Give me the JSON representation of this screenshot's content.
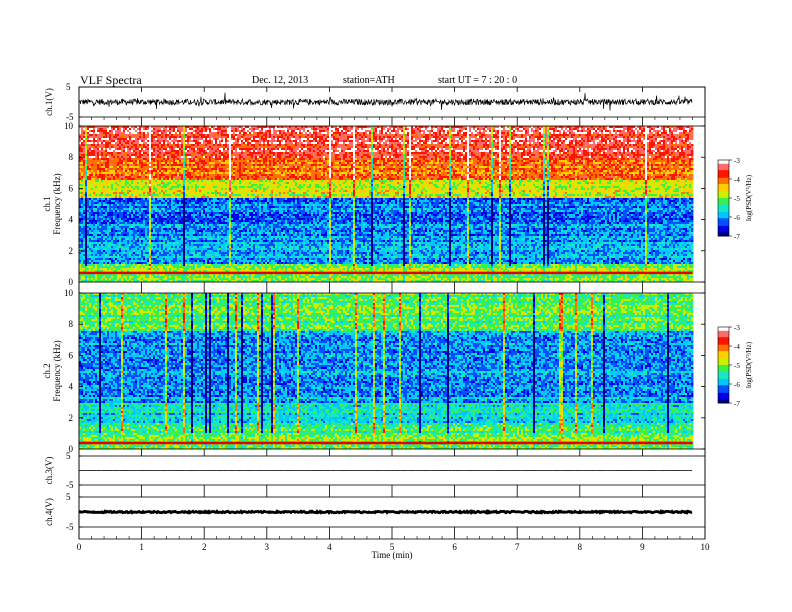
{
  "header": {
    "title": "VLF Spectra",
    "date": "Dec. 12, 2013",
    "station": "station=ATH",
    "start": "start UT = 7 : 20 : 0"
  },
  "chart_data": [
    {
      "type": "line",
      "panel": "ch.1",
      "ylabel": "ch.1(V)",
      "ylim": [
        -5,
        5
      ],
      "y_ticks": [
        5,
        -5
      ],
      "xlim": [
        0,
        10
      ],
      "series": [
        {
          "x": [
            0,
            9.8
          ],
          "baseline": 0,
          "noise_amplitude": 1.0
        }
      ]
    },
    {
      "type": "heatmap",
      "panel": "ch.1",
      "ylabel_top": "ch.1",
      "ylabel": "Frequency (kHz)",
      "ylim": [
        0,
        10
      ],
      "y_ticks": [
        0,
        2,
        4,
        6,
        8,
        10
      ],
      "xlim": [
        0,
        10
      ],
      "data_extent_min": 9.8,
      "colorbar": {
        "label": "log(PSD(V²/Hz)",
        "range": [
          -7,
          -3
        ],
        "ticks": [
          -3,
          -4,
          -5,
          -6,
          -7
        ]
      },
      "band_levels": [
        {
          "f_from": 0,
          "f_to": 1.2,
          "log_psd": -5.0
        },
        {
          "f_from": 1.2,
          "f_to": 3.0,
          "log_psd": -6.0
        },
        {
          "f_from": 3.0,
          "f_to": 5.4,
          "log_psd": -6.2
        },
        {
          "f_from": 5.4,
          "f_to": 6.6,
          "log_psd": -4.8
        },
        {
          "f_from": 6.6,
          "f_to": 8.0,
          "log_psd": -4.0
        },
        {
          "f_from": 8.0,
          "f_to": 10,
          "log_psd": -3.5
        }
      ],
      "persistent_line_khz": 0.6
    },
    {
      "type": "heatmap",
      "panel": "ch.2",
      "ylabel_top": "ch.2",
      "ylabel": "Frequency (kHz)",
      "ylim": [
        0,
        10
      ],
      "y_ticks": [
        0,
        2,
        4,
        6,
        8,
        10
      ],
      "xlim": [
        0,
        10
      ],
      "data_extent_min": 9.8,
      "colorbar": {
        "label": "log(PSD(V²/Hz)",
        "range": [
          -7,
          -3
        ],
        "ticks": [
          -3,
          -4,
          -5,
          -6,
          -7
        ]
      },
      "band_levels": [
        {
          "f_from": 0,
          "f_to": 1.5,
          "log_psd": -5.2
        },
        {
          "f_from": 1.5,
          "f_to": 3.0,
          "log_psd": -5.6
        },
        {
          "f_from": 3.0,
          "f_to": 5.0,
          "log_psd": -6.0
        },
        {
          "f_from": 5.0,
          "f_to": 7.5,
          "log_psd": -6.1
        },
        {
          "f_from": 7.5,
          "f_to": 10,
          "log_psd": -5.2
        }
      ],
      "persistent_line_khz": 0.4
    },
    {
      "type": "line",
      "panel": "ch.3",
      "ylabel": "ch.3(V)",
      "ylim": [
        -5,
        5
      ],
      "y_ticks": [
        5,
        -5
      ],
      "xlim": [
        0,
        10
      ],
      "series": [
        {
          "x": [
            0,
            9.8
          ],
          "baseline": 0,
          "noise_amplitude": 0.05
        }
      ]
    },
    {
      "type": "line",
      "panel": "ch.4",
      "ylabel": "ch.4(V)",
      "ylim": [
        -5,
        5
      ],
      "y_ticks": [
        5,
        -5
      ],
      "xlim": [
        0,
        10
      ],
      "series": [
        {
          "x": [
            0,
            9.8
          ],
          "baseline": 0,
          "noise_amplitude": 0.25
        }
      ]
    }
  ],
  "x_axis": {
    "label": "Time (min)",
    "ticks": [
      "0",
      "1",
      "2",
      "3",
      "4",
      "5",
      "6",
      "7",
      "8",
      "9",
      "10"
    ]
  },
  "colors": {
    "spectral_scale": [
      "#00007a",
      "#0000e6",
      "#0050ff",
      "#00c8ff",
      "#18e8c0",
      "#3cf048",
      "#c8f000",
      "#ffd000",
      "#ff7000",
      "#ff1400",
      "#ff6a6a",
      "#ffffff"
    ]
  }
}
